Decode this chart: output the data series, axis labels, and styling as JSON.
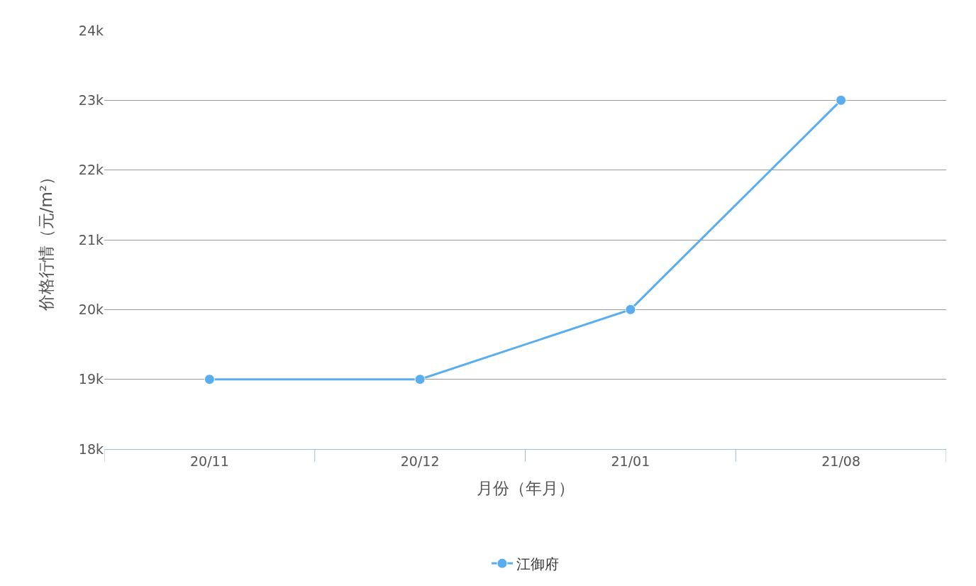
{
  "chart_data": {
    "type": "line",
    "xlabel": "月份（年月）",
    "ylabel": "价格行情（元/m²）",
    "categories": [
      "20/11",
      "20/12",
      "21/01",
      "21/08"
    ],
    "series": [
      {
        "name": "江御府",
        "color": "#5aaef0",
        "values": [
          19000,
          19000,
          20000,
          23000
        ]
      }
    ],
    "ylim": [
      18000,
      24000
    ],
    "yticks": [
      {
        "value": 18000,
        "label": "18k"
      },
      {
        "value": 19000,
        "label": "19k"
      },
      {
        "value": 20000,
        "label": "20k"
      },
      {
        "value": 21000,
        "label": "21k"
      },
      {
        "value": 22000,
        "label": "22k"
      },
      {
        "value": 23000,
        "label": "23k"
      },
      {
        "value": 24000,
        "label": "24k"
      }
    ],
    "grid": "y",
    "legend": "bottom",
    "marker": "circle",
    "line_style": "solid"
  }
}
